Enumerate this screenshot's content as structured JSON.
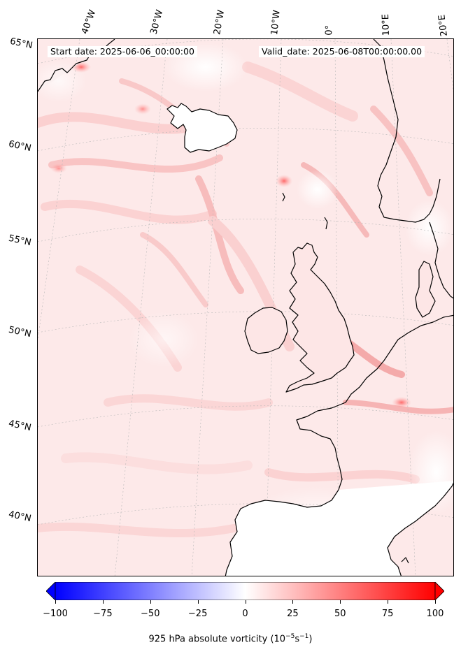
{
  "header": {
    "start_date": "Start date: 2025-06-06_00:00:00",
    "valid_date": "Valid_date: 2025-06-08T00:00:00.00"
  },
  "longitude_labels": [
    "40°W",
    "30°W",
    "20°W",
    "10°W",
    "0°",
    "10°E",
    "20°E"
  ],
  "latitude_labels": [
    "65°N",
    "60°N",
    "55°N",
    "50°N",
    "45°N",
    "40°N"
  ],
  "colorbar": {
    "min": -100,
    "max": 100,
    "ticks": [
      "−100",
      "−75",
      "−50",
      "−25",
      "0",
      "25",
      "50",
      "75",
      "100"
    ],
    "label_text": "925 hPa absolute vorticity (10",
    "label_exp1": "−5",
    "label_mid": "s",
    "label_exp2": "−1",
    "label_end": ")",
    "colors": {
      "negative": "#0000ff",
      "zero": "#ffffff",
      "positive": "#ff0000"
    }
  },
  "map": {
    "ocean_background": "#fde9e9",
    "coastline_color": "#000000"
  }
}
